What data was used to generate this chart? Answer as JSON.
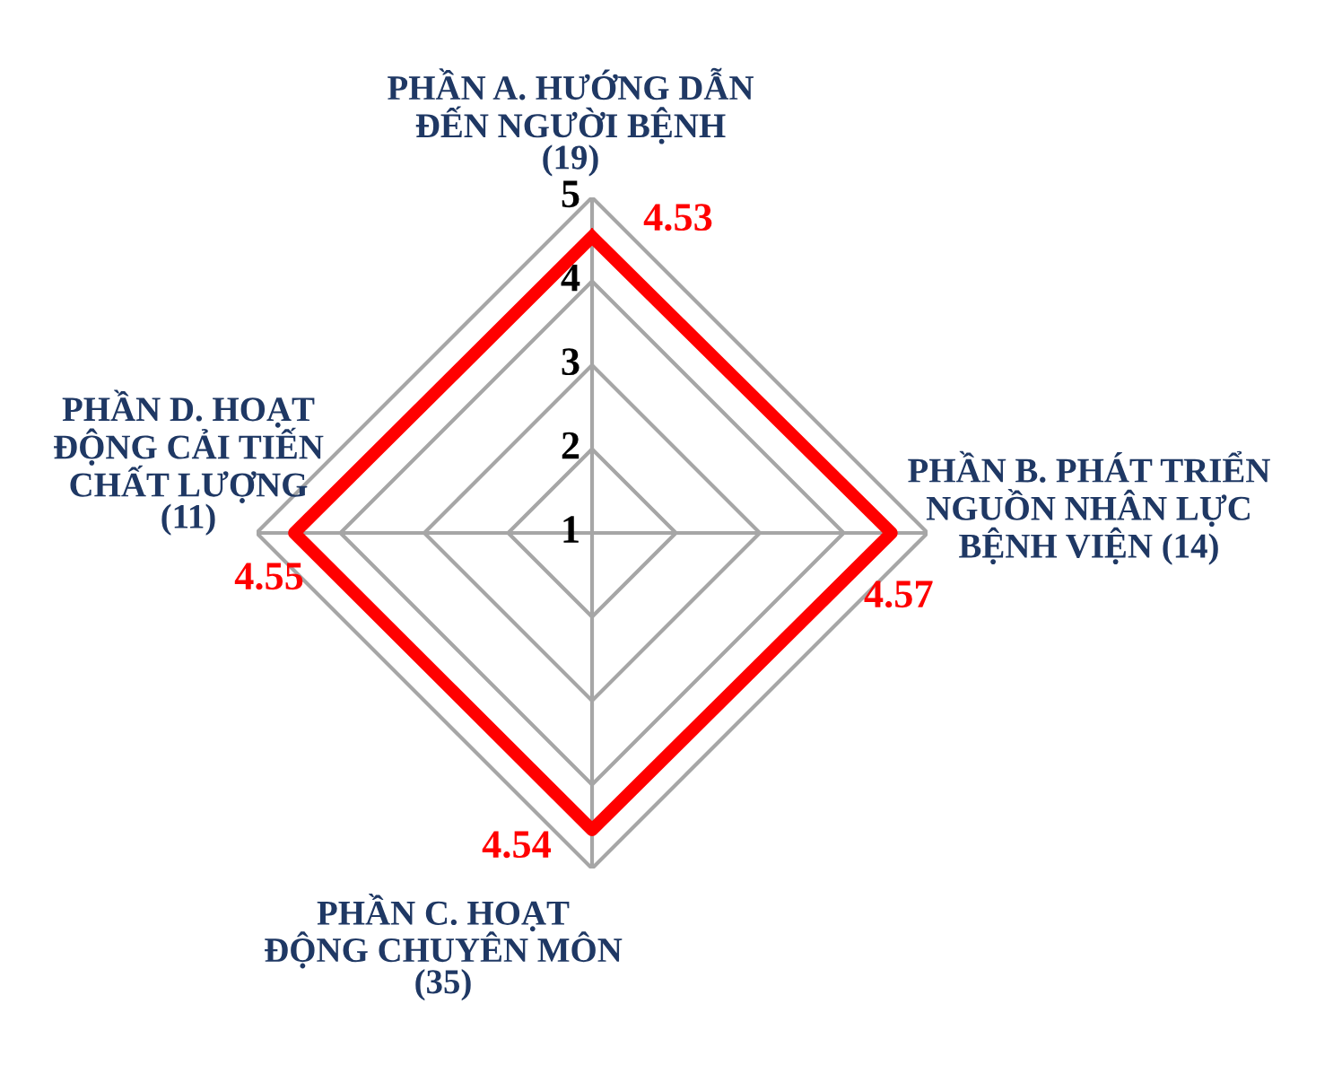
{
  "chart_data": {
    "type": "radar",
    "categories": [
      "PHẦN A. HƯỚNG DẪN\nĐẾN NGƯỜI BỆNH\n(19)",
      "PHẦN B. PHÁT TRIỂN\nNGUỒN NHÂN LỰC\nBỆNH VIỆN (14)",
      "PHẦN C. HOẠT\nĐỘNG CHUYÊN MÔN\n(35)",
      "PHẦN D. HOẠT\nĐỘNG CẢI TIẾN\nCHẤT LƯỢNG\n(11)"
    ],
    "series": [
      {
        "color": "#ff0000",
        "values": [
          4.53,
          4.57,
          4.54,
          4.55
        ]
      }
    ],
    "ylim": [
      1,
      5
    ],
    "yticks": [
      1,
      2,
      3,
      4,
      5
    ],
    "grid": true,
    "data_labels": true,
    "marker": "none",
    "line_style": "solid"
  }
}
